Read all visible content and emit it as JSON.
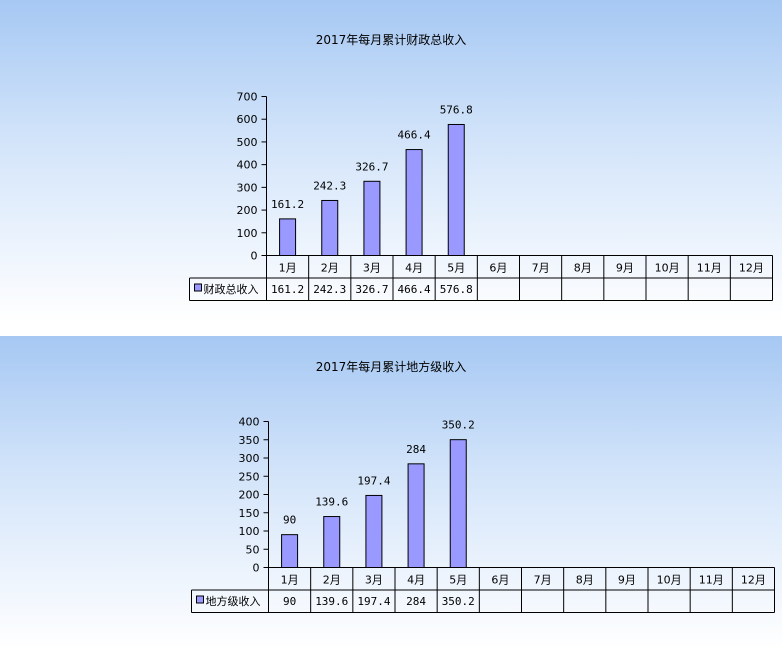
{
  "chart_data": [
    {
      "type": "bar",
      "title": "2017年每月累计财政总收入",
      "categories": [
        "1月",
        "2月",
        "3月",
        "4月",
        "5月",
        "6月",
        "7月",
        "8月",
        "9月",
        "10月",
        "11月",
        "12月"
      ],
      "series": [
        {
          "name": "财政总收入",
          "values": [
            161.2,
            242.3,
            326.7,
            466.4,
            576.8,
            null,
            null,
            null,
            null,
            null,
            null,
            null
          ]
        }
      ],
      "value_labels": [
        "161.2",
        "242.3",
        "326.7",
        "466.4",
        "576.8",
        "",
        "",
        "",
        "",
        "",
        "",
        ""
      ],
      "ylim": [
        0,
        700
      ],
      "yticks": [
        0,
        100,
        200,
        300,
        400,
        500,
        600,
        700
      ],
      "data_table": true,
      "bar_color": "#9999ff",
      "grid": false
    },
    {
      "type": "bar",
      "title": "2017年每月累计地方级收入",
      "categories": [
        "1月",
        "2月",
        "3月",
        "4月",
        "5月",
        "6月",
        "7月",
        "8月",
        "9月",
        "10月",
        "11月",
        "12月"
      ],
      "series": [
        {
          "name": "地方级收入",
          "values": [
            90,
            139.6,
            197.4,
            284,
            350.2,
            null,
            null,
            null,
            null,
            null,
            null,
            null
          ]
        }
      ],
      "value_labels": [
        "90",
        "139.6",
        "197.4",
        "284",
        "350.2",
        "",
        "",
        "",
        "",
        "",
        "",
        ""
      ],
      "ylim": [
        0,
        400
      ],
      "yticks": [
        0,
        50,
        100,
        150,
        200,
        250,
        300,
        350,
        400
      ],
      "data_table": true,
      "bar_color": "#9999ff",
      "grid": false
    }
  ]
}
